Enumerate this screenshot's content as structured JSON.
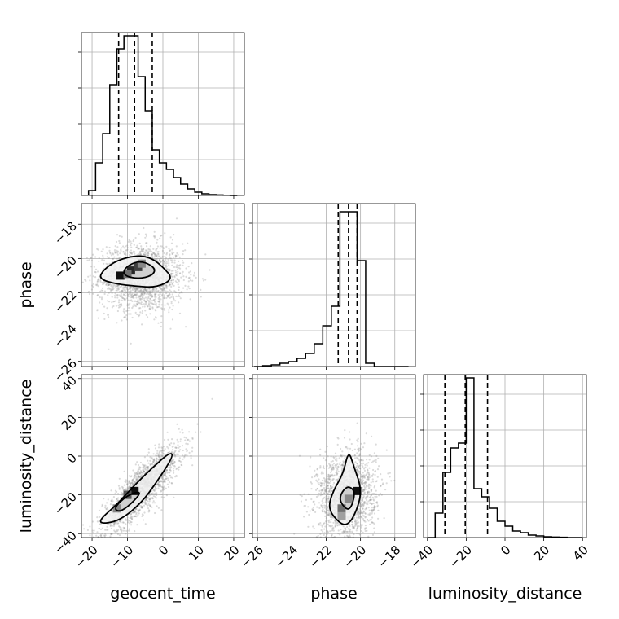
{
  "chart_data": {
    "type": "corner",
    "parameters": [
      "geocent_time",
      "phase",
      "luminosity_distance"
    ],
    "axes": {
      "geocent_time": {
        "lim": [
          -23,
          23
        ],
        "ticks": [
          -20,
          -10,
          0,
          10,
          20
        ],
        "tick_labels": [
          "−20",
          "−10",
          "0",
          "10",
          "20"
        ]
      },
      "phase": {
        "lim": [
          -26.3,
          -16.8
        ],
        "ticks": [
          -26,
          -24,
          -22,
          -20,
          -18
        ],
        "tick_labels": [
          "−26",
          "−24",
          "−22",
          "−20",
          "−18"
        ]
      },
      "luminosity_distance": {
        "lim": [
          -42,
          42
        ],
        "ticks": [
          -40,
          -20,
          0,
          20,
          40
        ],
        "tick_labels": [
          "−40",
          "−20",
          "0",
          "20",
          "40"
        ]
      }
    },
    "hist_ylim": 1.0,
    "histograms": {
      "geocent_time": {
        "edges": [
          -21,
          -19,
          -17,
          -15,
          -13,
          -11,
          -9,
          -7,
          -5,
          -3,
          -1,
          1,
          3,
          5,
          7,
          9,
          11,
          13,
          15,
          17,
          19,
          21
        ],
        "counts": [
          0.03,
          0.2,
          0.38,
          0.68,
          0.9,
          0.98,
          0.98,
          0.73,
          0.52,
          0.28,
          0.2,
          0.16,
          0.11,
          0.07,
          0.04,
          0.02,
          0.01,
          0.005,
          0.003,
          0.001,
          0.0
        ],
        "quantiles": [
          -12.5,
          -8.0,
          -3.0
        ]
      },
      "phase": {
        "edges": [
          -26.2,
          -25.7,
          -25.2,
          -24.7,
          -24.2,
          -23.7,
          -23.2,
          -22.7,
          -22.2,
          -21.7,
          -21.2,
          -20.7,
          -20.2,
          -19.7,
          -19.2,
          -18.7,
          -18.2,
          -17.7,
          -17.2
        ],
        "counts": [
          0.0,
          0.005,
          0.01,
          0.02,
          0.03,
          0.05,
          0.08,
          0.14,
          0.25,
          0.37,
          0.95,
          0.95,
          0.65,
          0.02,
          0.0,
          0.0,
          0.0,
          0.0
        ],
        "quantiles": [
          -21.3,
          -20.7,
          -20.2
        ]
      },
      "luminosity_distance": {
        "edges": [
          -40,
          -36,
          -32,
          -28,
          -24,
          -20,
          -16,
          -12,
          -8,
          -4,
          0,
          4,
          8,
          12,
          16,
          20,
          24,
          28,
          32,
          36,
          40
        ],
        "counts": [
          0.0,
          0.15,
          0.4,
          0.55,
          0.58,
          0.98,
          0.3,
          0.25,
          0.18,
          0.1,
          0.07,
          0.04,
          0.03,
          0.015,
          0.01,
          0.005,
          0.003,
          0.002,
          0.0,
          0.0
        ],
        "quantiles": [
          -31,
          -20.5,
          -9
        ]
      }
    },
    "pairs": [
      {
        "x": "geocent_time",
        "y": "phase",
        "center": [
          -6,
          -21.1
        ],
        "spread": [
          6,
          1.0
        ],
        "corr": 0.0,
        "n": 1800,
        "contours": [
          [
            [
              -11,
              -20.6
            ],
            [
              -8,
              -20.2
            ],
            [
              -5,
              -20.2
            ],
            [
              -2,
              -20.6
            ],
            [
              -3,
              -21.0
            ],
            [
              -7,
              -21.2
            ],
            [
              -11,
              -21.0
            ]
          ],
          [
            [
              -17,
              -20.7
            ],
            [
              -13,
              -20.1
            ],
            [
              -7,
              -19.8
            ],
            [
              -3,
              -20.0
            ],
            [
              0,
              -20.5
            ],
            [
              3,
              -21.2
            ],
            [
              -2,
              -21.7
            ],
            [
              -8,
              -21.6
            ],
            [
              -13,
              -21.5
            ],
            [
              -18,
              -21.2
            ]
          ]
        ],
        "cells": [
          [
            -9,
            -20.7,
            0.9
          ],
          [
            -7,
            -20.5,
            0.8
          ],
          [
            -12,
            -21.0,
            1.0
          ],
          [
            -10,
            -20.9,
            0.6
          ],
          [
            -6,
            -20.3,
            0.5
          ]
        ]
      },
      {
        "x": "geocent_time",
        "y": "luminosity_distance",
        "center": [
          -6,
          -17
        ],
        "spread": [
          5.5,
          11
        ],
        "corr": 0.85,
        "n": 1800,
        "contours": [
          [
            [
              -14,
              -27
            ],
            [
              -10,
              -20
            ],
            [
              -6,
              -18
            ],
            [
              -8,
              -23
            ],
            [
              -12,
              -29
            ]
          ],
          [
            [
              -18,
              -33
            ],
            [
              -13,
              -25
            ],
            [
              -8,
              -15
            ],
            [
              -3,
              -6
            ],
            [
              2,
              2
            ],
            [
              3,
              0
            ],
            [
              -2,
              -14
            ],
            [
              -6,
              -24
            ],
            [
              -12,
              -33
            ],
            [
              -17,
              -35
            ]
          ]
        ],
        "cells": [
          [
            -8,
            -18,
            1.0
          ],
          [
            -10,
            -20,
            0.7
          ],
          [
            -13,
            -27,
            0.5
          ]
        ]
      },
      {
        "x": "phase",
        "y": "luminosity_distance",
        "center": [
          -20.8,
          -20
        ],
        "spread": [
          0.85,
          11
        ],
        "corr": 0.1,
        "n": 1800,
        "contours": [
          [
            [
              -20.8,
              -28
            ],
            [
              -21.3,
              -22
            ],
            [
              -20.8,
              -15
            ],
            [
              -20.3,
              -18
            ],
            [
              -20.5,
              -26
            ]
          ],
          [
            [
              -21.3,
              -34
            ],
            [
              -21.9,
              -27
            ],
            [
              -21.6,
              -18
            ],
            [
              -21.0,
              -9
            ],
            [
              -20.7,
              3
            ],
            [
              -20.4,
              -5
            ],
            [
              -19.9,
              -18
            ],
            [
              -20.3,
              -30
            ],
            [
              -20.8,
              -36
            ]
          ]
        ],
        "cells": [
          [
            -20.2,
            -18,
            1.0
          ],
          [
            -21.1,
            -27,
            0.6
          ],
          [
            -20.7,
            -22,
            0.5
          ],
          [
            -21.1,
            -31,
            0.4
          ]
        ]
      }
    ],
    "colors": {
      "line": "#000000",
      "grid": "#b0b0b0",
      "scatter": "#888888"
    }
  }
}
